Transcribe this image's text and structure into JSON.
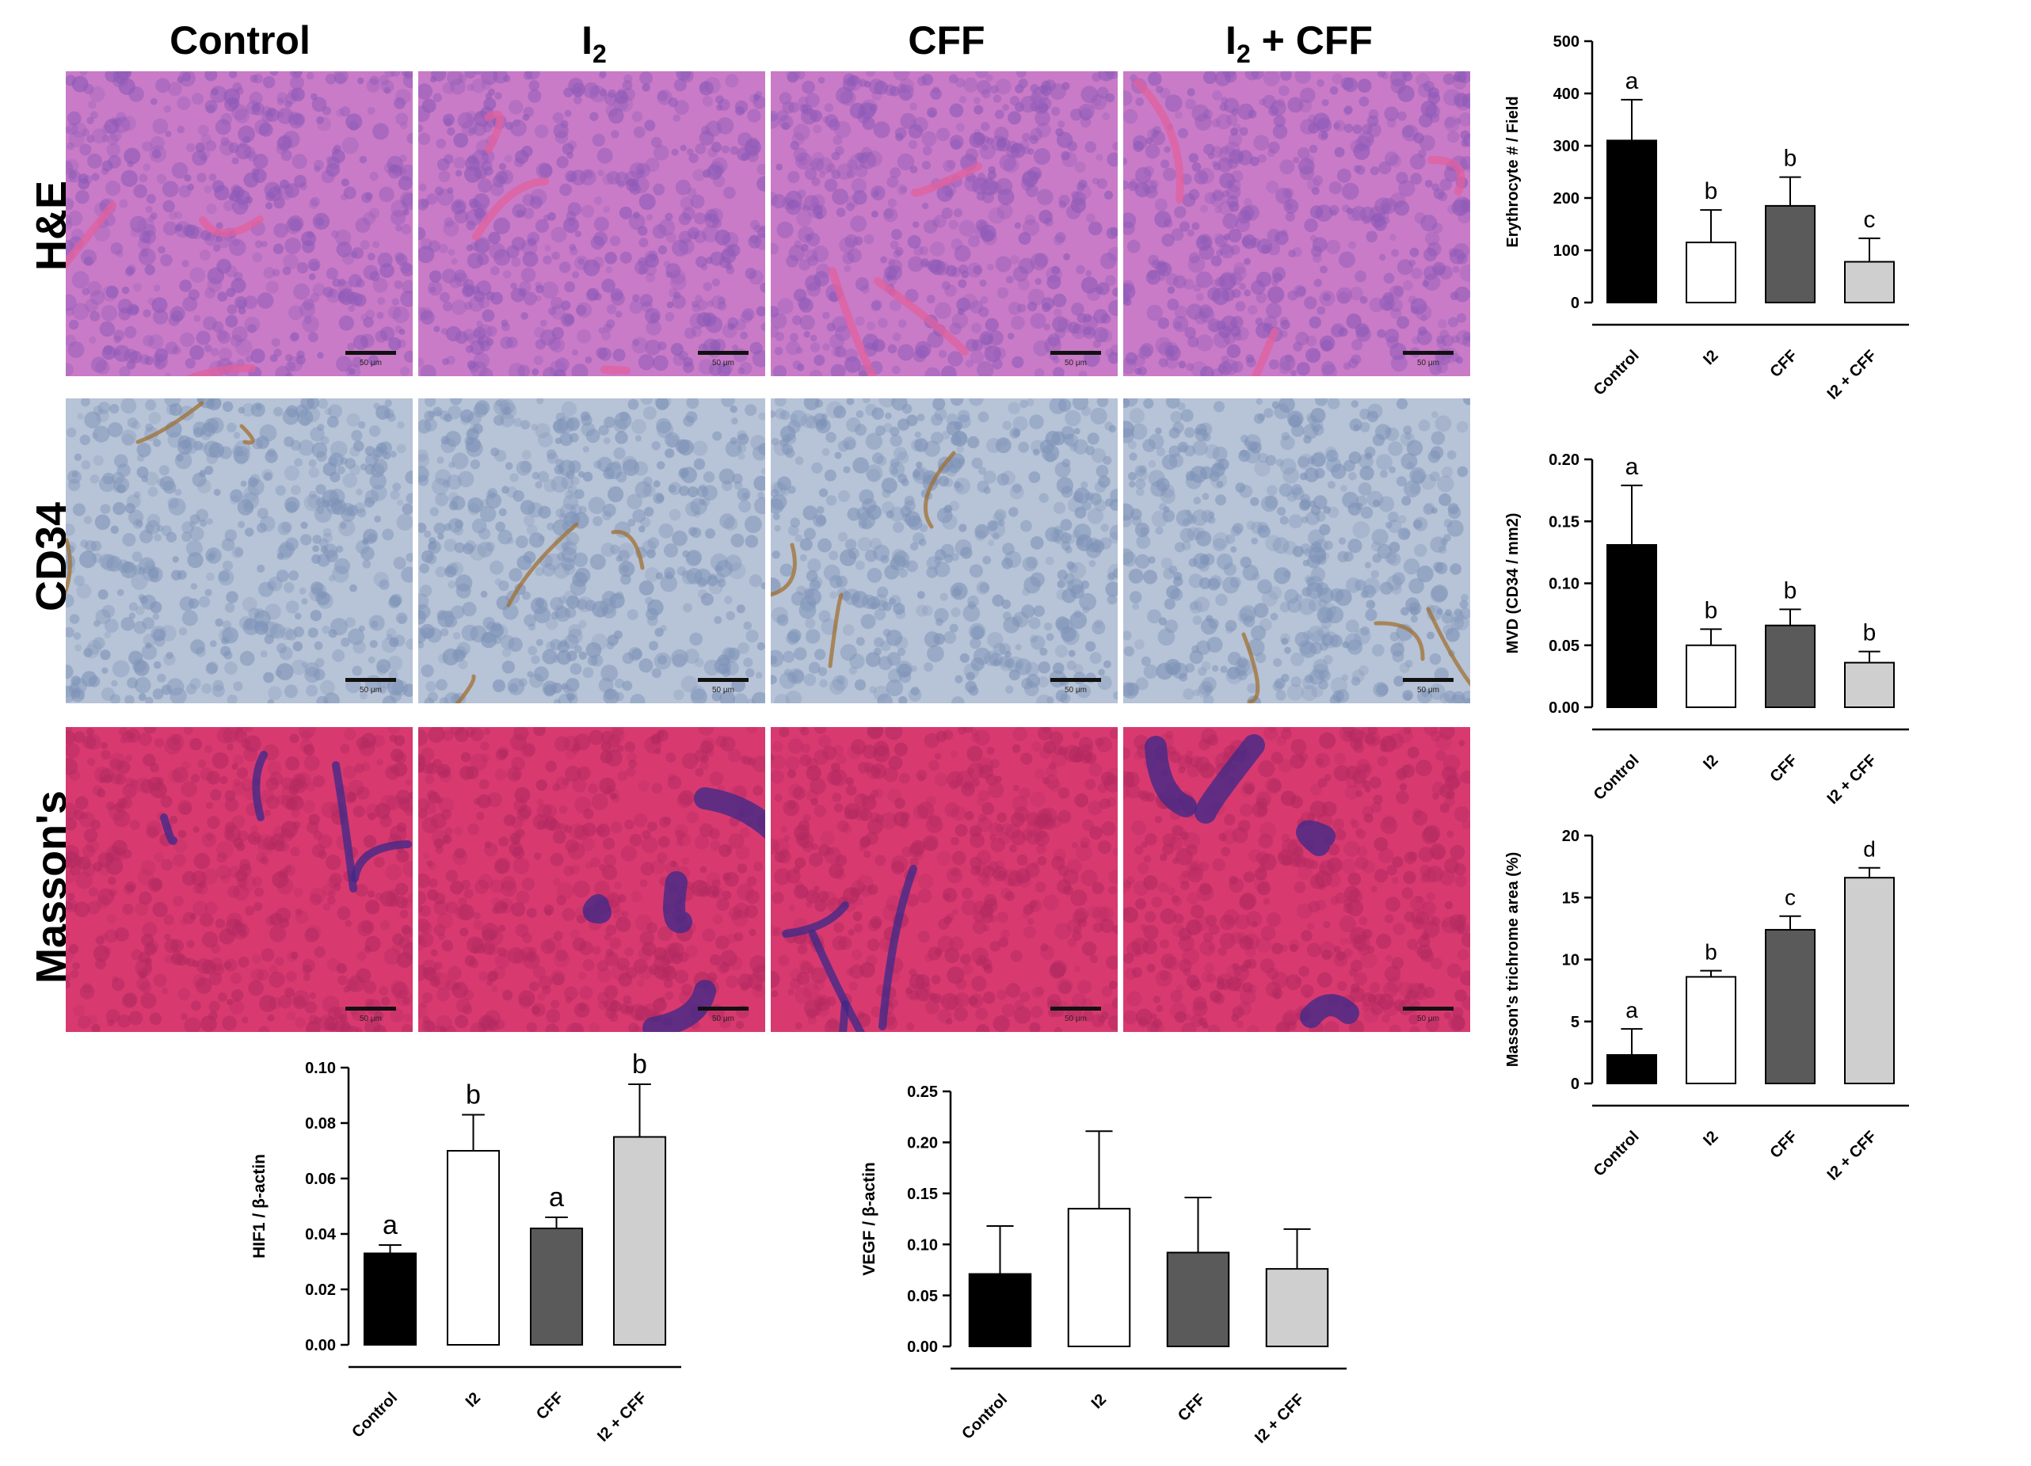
{
  "figure": {
    "columns": [
      {
        "main": "Control",
        "sub": "",
        "rest": ""
      },
      {
        "main": "I",
        "sub": "2",
        "rest": ""
      },
      {
        "main": "CFF",
        "sub": "",
        "rest": ""
      },
      {
        "main": "I",
        "sub": "2",
        "rest": " + CFF"
      }
    ],
    "rows": [
      "H&E",
      "CD34",
      "Masson's"
    ],
    "scale_bar_label": "50 μm",
    "stain_colors": {
      "he": [
        "#c97bc7",
        "#8e5bb8",
        "#e0609e"
      ],
      "cd34": [
        "#b7c3d6",
        "#7e93b8",
        "#a07030"
      ],
      "masson": [
        "#d83a70",
        "#b22a60",
        "#3a2a8a"
      ]
    }
  },
  "bar_styles": {
    "Control": "#000000",
    "I2": "#ffffff",
    "CFF": "#5a5a5a",
    "I2 + CFF": "#cfcfcf"
  },
  "chart_data": [
    {
      "id": "erythrocyte",
      "type": "bar",
      "categories": [
        "Control",
        "I2",
        "CFF",
        "I2 + CFF"
      ],
      "values": [
        310,
        115,
        185,
        78
      ],
      "errors": [
        78,
        62,
        55,
        45
      ],
      "letters": [
        "a",
        "b",
        "b",
        "c"
      ],
      "ylabel": "Erythrocyte # / Field",
      "ylim": [
        0,
        500
      ],
      "yticks": [
        "0",
        "100",
        "200",
        "300",
        "400",
        "500"
      ],
      "ytickvals": [
        0,
        100,
        200,
        300,
        400,
        500
      ]
    },
    {
      "id": "mvd",
      "type": "bar",
      "categories": [
        "Control",
        "I2",
        "CFF",
        "I2 + CFF"
      ],
      "values": [
        0.131,
        0.05,
        0.066,
        0.036
      ],
      "errors": [
        0.048,
        0.013,
        0.013,
        0.009
      ],
      "letters": [
        "a",
        "b",
        "b",
        "b"
      ],
      "ylabel": "MVD (CD34 / mm2)",
      "ylim": [
        0,
        0.2
      ],
      "yticks": [
        "0.00",
        "0.05",
        "0.10",
        "0.15",
        "0.20"
      ],
      "ytickvals": [
        0,
        0.05,
        0.1,
        0.15,
        0.2
      ]
    },
    {
      "id": "masson",
      "type": "bar",
      "categories": [
        "Control",
        "I2",
        "CFF",
        "I2 + CFF"
      ],
      "values": [
        2.3,
        8.6,
        12.4,
        16.6
      ],
      "errors": [
        2.1,
        0.5,
        1.1,
        0.8
      ],
      "letters": [
        "a",
        "b",
        "c",
        "d"
      ],
      "ylabel": "Masson's trichrome area (%)",
      "ylim": [
        0,
        20
      ],
      "yticks": [
        "0",
        "5",
        "10",
        "15",
        "20"
      ],
      "ytickvals": [
        0,
        5,
        10,
        15,
        20
      ]
    },
    {
      "id": "hif1",
      "type": "bar",
      "categories": [
        "Control",
        "I2",
        "CFF",
        "I2 + CFF"
      ],
      "values": [
        0.033,
        0.07,
        0.042,
        0.075
      ],
      "errors": [
        0.003,
        0.013,
        0.004,
        0.019
      ],
      "letters": [
        "a",
        "b",
        "a",
        "b"
      ],
      "ylabel": "HIF1 / β-actin",
      "ylim": [
        0,
        0.1
      ],
      "yticks": [
        "0.00",
        "0.02",
        "0.04",
        "0.06",
        "0.08",
        "0.10"
      ],
      "ytickvals": [
        0,
        0.02,
        0.04,
        0.06,
        0.08,
        0.1
      ]
    },
    {
      "id": "vegf",
      "type": "bar",
      "categories": [
        "Control",
        "I2",
        "CFF",
        "I2 + CFF"
      ],
      "values": [
        0.071,
        0.135,
        0.092,
        0.076
      ],
      "errors": [
        0.047,
        0.076,
        0.054,
        0.039
      ],
      "letters": [
        "",
        "",
        "",
        ""
      ],
      "ylabel": "VEGF / β-actin",
      "ylim": [
        0,
        0.25
      ],
      "yticks": [
        "0.00",
        "0.05",
        "0.10",
        "0.15",
        "0.20",
        "0.25"
      ],
      "ytickvals": [
        0,
        0.05,
        0.1,
        0.15,
        0.2,
        0.25
      ]
    }
  ]
}
